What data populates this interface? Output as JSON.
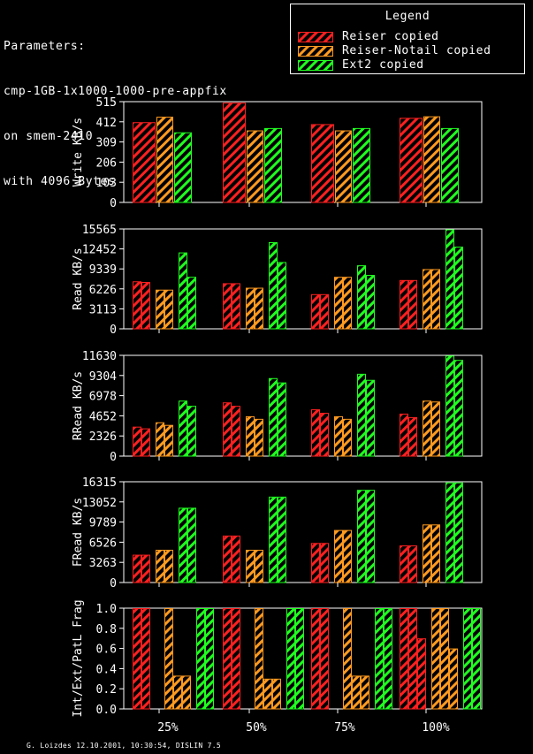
{
  "parameters": {
    "heading": "Parameters:",
    "lines": [
      "cmp-1GB-1x1000-1000-pre-appfix",
      "on smem-2410",
      "with 4096 Bytes"
    ]
  },
  "legend": {
    "title": "Legend",
    "items": [
      {
        "label": "Reiser copied",
        "color": "#ff2020"
      },
      {
        "label": "Reiser-Notail copied",
        "color": "#ff9a20"
      },
      {
        "label": "Ext2 copied",
        "color": "#20ff20"
      }
    ]
  },
  "footer": "G. Loizdes 12.10.2001, 10:30:54, DISLIN 7.5",
  "chart_data": {
    "type": "bar",
    "categories": [
      "25%",
      "50%",
      "75%",
      "100%"
    ],
    "series_colors": [
      "#ff2020",
      "#ff9a20",
      "#20ff20"
    ],
    "panels": [
      {
        "ylabel": "Write KB/s",
        "ylim": [
          0,
          515
        ],
        "yticks": [
          "0",
          "103",
          "206",
          "309",
          "412",
          "515"
        ],
        "bars_per_series": 1,
        "values": [
          [
            [
              410
            ],
            [
              438
            ],
            [
              358
            ]
          ],
          [
            [
              510
            ],
            [
              368
            ],
            [
              380
            ]
          ],
          [
            [
              400
            ],
            [
              368
            ],
            [
              380
            ]
          ],
          [
            [
              432
            ],
            [
              440
            ],
            [
              380
            ]
          ]
        ]
      },
      {
        "ylabel": "Read KB/s",
        "ylim": [
          0,
          15565
        ],
        "yticks": [
          "0",
          "3113",
          "6226",
          "9339",
          "12452",
          "15565"
        ],
        "bars_per_series": 2,
        "values": [
          [
            [
              7400,
              7300
            ],
            [
              6100,
              6100
            ],
            [
              11900,
              8100
            ]
          ],
          [
            [
              7100,
              7100
            ],
            [
              6400,
              6400
            ],
            [
              13500,
              10400
            ]
          ],
          [
            [
              5400,
              5400
            ],
            [
              8100,
              8100
            ],
            [
              9900,
              8400
            ]
          ],
          [
            [
              7600,
              7600
            ],
            [
              9300,
              9300
            ],
            [
              15500,
              12800
            ]
          ]
        ]
      },
      {
        "ylabel": "RRead KB/s",
        "ylim": [
          0,
          11630
        ],
        "yticks": [
          "0",
          "2326",
          "4652",
          "6978",
          "9304",
          "11630"
        ],
        "bars_per_series": 2,
        "values": [
          [
            [
              3400,
              3200
            ],
            [
              3900,
              3600
            ],
            [
              6400,
              5800
            ]
          ],
          [
            [
              6200,
              5800
            ],
            [
              4600,
              4300
            ],
            [
              9000,
              8500
            ]
          ],
          [
            [
              5400,
              5000
            ],
            [
              4600,
              4300
            ],
            [
              9500,
              8800
            ]
          ],
          [
            [
              4900,
              4500
            ],
            [
              6400,
              6300
            ],
            [
              11600,
              11100
            ]
          ]
        ]
      },
      {
        "ylabel": "FRead KB/s",
        "ylim": [
          0,
          16315
        ],
        "yticks": [
          "0",
          "3263",
          "6526",
          "9789",
          "13052",
          "16315"
        ],
        "bars_per_series": 2,
        "values": [
          [
            [
              4500,
              4500
            ],
            [
              5300,
              5300
            ],
            [
              12100,
              12100
            ]
          ],
          [
            [
              7600,
              7600
            ],
            [
              5300,
              5300
            ],
            [
              13900,
              13900
            ]
          ],
          [
            [
              6400,
              6400
            ],
            [
              8500,
              8500
            ],
            [
              15000,
              15000
            ]
          ],
          [
            [
              6000,
              6000
            ],
            [
              9400,
              9400
            ],
            [
              16200,
              16200
            ]
          ]
        ]
      },
      {
        "ylabel": "Int/Ext/PatL Frag",
        "ylim": [
          0,
          1.0
        ],
        "yticks": [
          "0.0",
          "0.2",
          "0.4",
          "0.6",
          "0.8",
          "1.0"
        ],
        "bars_per_series": 3,
        "values": [
          [
            [
              1.0,
              1.0,
              0.0
            ],
            [
              1.0,
              0.33,
              0.33
            ],
            [
              1.0,
              1.0,
              0.0
            ]
          ],
          [
            [
              1.0,
              1.0,
              0.0
            ],
            [
              1.0,
              0.3,
              0.3
            ],
            [
              1.0,
              1.0,
              0.0
            ]
          ],
          [
            [
              1.0,
              1.0,
              0.0
            ],
            [
              1.0,
              0.33,
              0.33
            ],
            [
              1.0,
              1.0,
              0.0
            ]
          ],
          [
            [
              1.0,
              1.0,
              0.7
            ],
            [
              1.0,
              1.0,
              0.6
            ],
            [
              1.0,
              1.0,
              0.0
            ]
          ]
        ]
      }
    ]
  }
}
